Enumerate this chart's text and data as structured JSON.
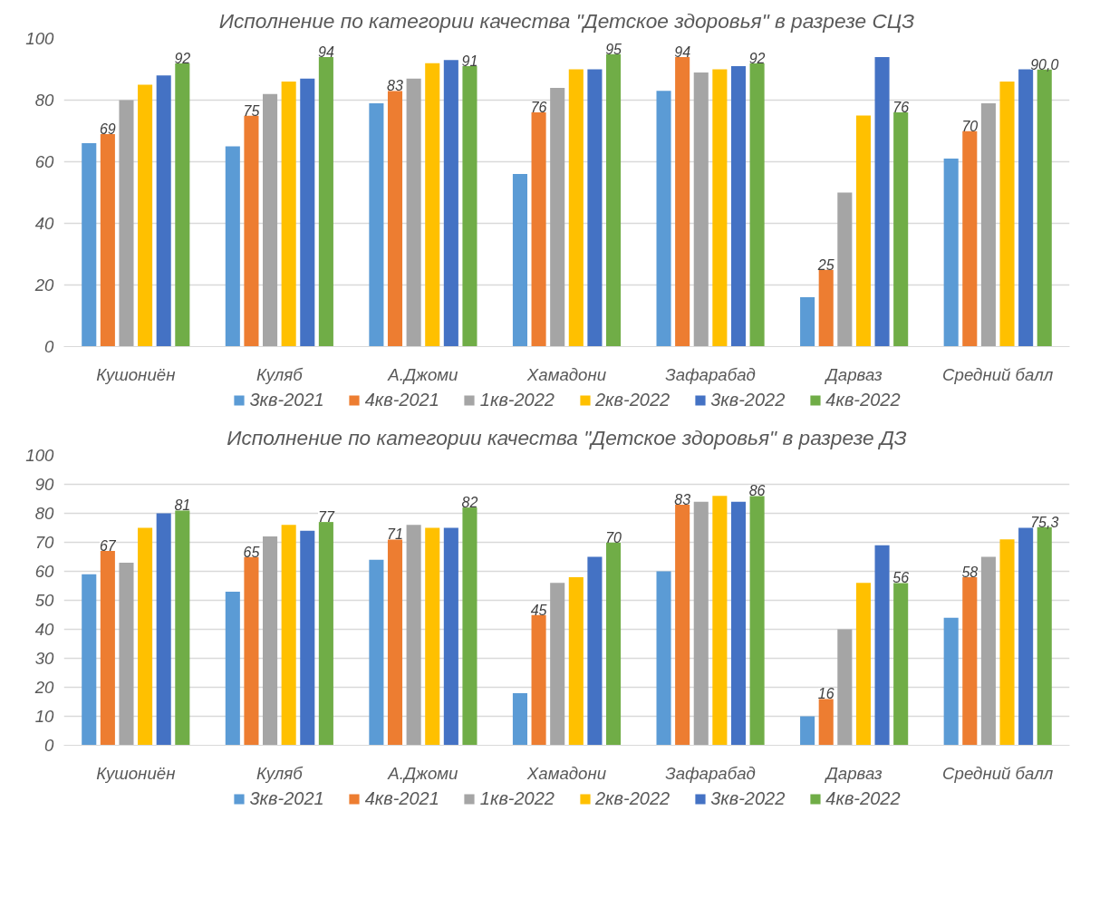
{
  "chart_data": [
    {
      "type": "bar",
      "title": "Исполнение по категории качества \"Детское здоровья\" в разрезе СЦЗ",
      "categories": [
        "Кушониён",
        "Куляб",
        "А.Джоми",
        "Хамадони",
        "Зафарабад",
        "Дарваз",
        "Средний балл"
      ],
      "ylim": [
        0,
        100
      ],
      "yticks": [
        0,
        20,
        40,
        60,
        80,
        100
      ],
      "grid": "y",
      "legend": "bottom",
      "series": [
        {
          "name": "3кв-2021",
          "color": "#5b9bd5",
          "values": [
            66,
            65,
            79,
            56,
            83,
            16,
            61
          ]
        },
        {
          "name": "4кв-2021",
          "color": "#ed7d31",
          "values": [
            69,
            75,
            83,
            76,
            94,
            25,
            70
          ],
          "value_labels": [
            "69",
            "75",
            "83",
            "76",
            "94",
            "25",
            "70"
          ]
        },
        {
          "name": "1кв-2022",
          "color": "#a5a5a5",
          "values": [
            80,
            82,
            87,
            84,
            89,
            50,
            79
          ]
        },
        {
          "name": "2кв-2022",
          "color": "#ffc000",
          "values": [
            85,
            86,
            92,
            90,
            90,
            75,
            86
          ]
        },
        {
          "name": "3кв-2022",
          "color": "#4472c4",
          "values": [
            88,
            87,
            93,
            90,
            91,
            94,
            90
          ]
        },
        {
          "name": "4кв-2022",
          "color": "#70ad47",
          "values": [
            92,
            94,
            91,
            95,
            92,
            76,
            90.0
          ],
          "value_labels": [
            "92",
            "94",
            "91",
            "95",
            "92",
            "76",
            "90,0"
          ]
        }
      ]
    },
    {
      "type": "bar",
      "title": "Исполнение по категории качества \"Детское здоровья\" в разрезе ДЗ",
      "categories": [
        "Кушониён",
        "Куляб",
        "А.Джоми",
        "Хамадони",
        "Зафарабад",
        "Дарваз",
        "Средний балл"
      ],
      "ylim": [
        0,
        100
      ],
      "yticks": [
        0,
        10,
        20,
        30,
        40,
        50,
        60,
        70,
        80,
        90,
        100
      ],
      "grid": "y",
      "legend": "bottom",
      "series": [
        {
          "name": "3кв-2021",
          "color": "#5b9bd5",
          "values": [
            59,
            53,
            64,
            18,
            60,
            10,
            44
          ]
        },
        {
          "name": "4кв-2021",
          "color": "#ed7d31",
          "values": [
            67,
            65,
            71,
            45,
            83,
            16,
            58
          ],
          "value_labels": [
            "67",
            "65",
            "71",
            "45",
            "83",
            "16",
            "58"
          ]
        },
        {
          "name": "1кв-2022",
          "color": "#a5a5a5",
          "values": [
            63,
            72,
            76,
            56,
            84,
            40,
            65
          ]
        },
        {
          "name": "2кв-2022",
          "color": "#ffc000",
          "values": [
            75,
            76,
            75,
            58,
            86,
            56,
            71
          ]
        },
        {
          "name": "3кв-2022",
          "color": "#4472c4",
          "values": [
            80,
            74,
            75,
            65,
            84,
            69,
            75
          ]
        },
        {
          "name": "4кв-2022",
          "color": "#70ad47",
          "values": [
            81,
            77,
            82,
            70,
            86,
            56,
            75.3
          ],
          "value_labels": [
            "81",
            "77",
            "82",
            "70",
            "86",
            "56",
            "75,3"
          ]
        }
      ]
    }
  ]
}
